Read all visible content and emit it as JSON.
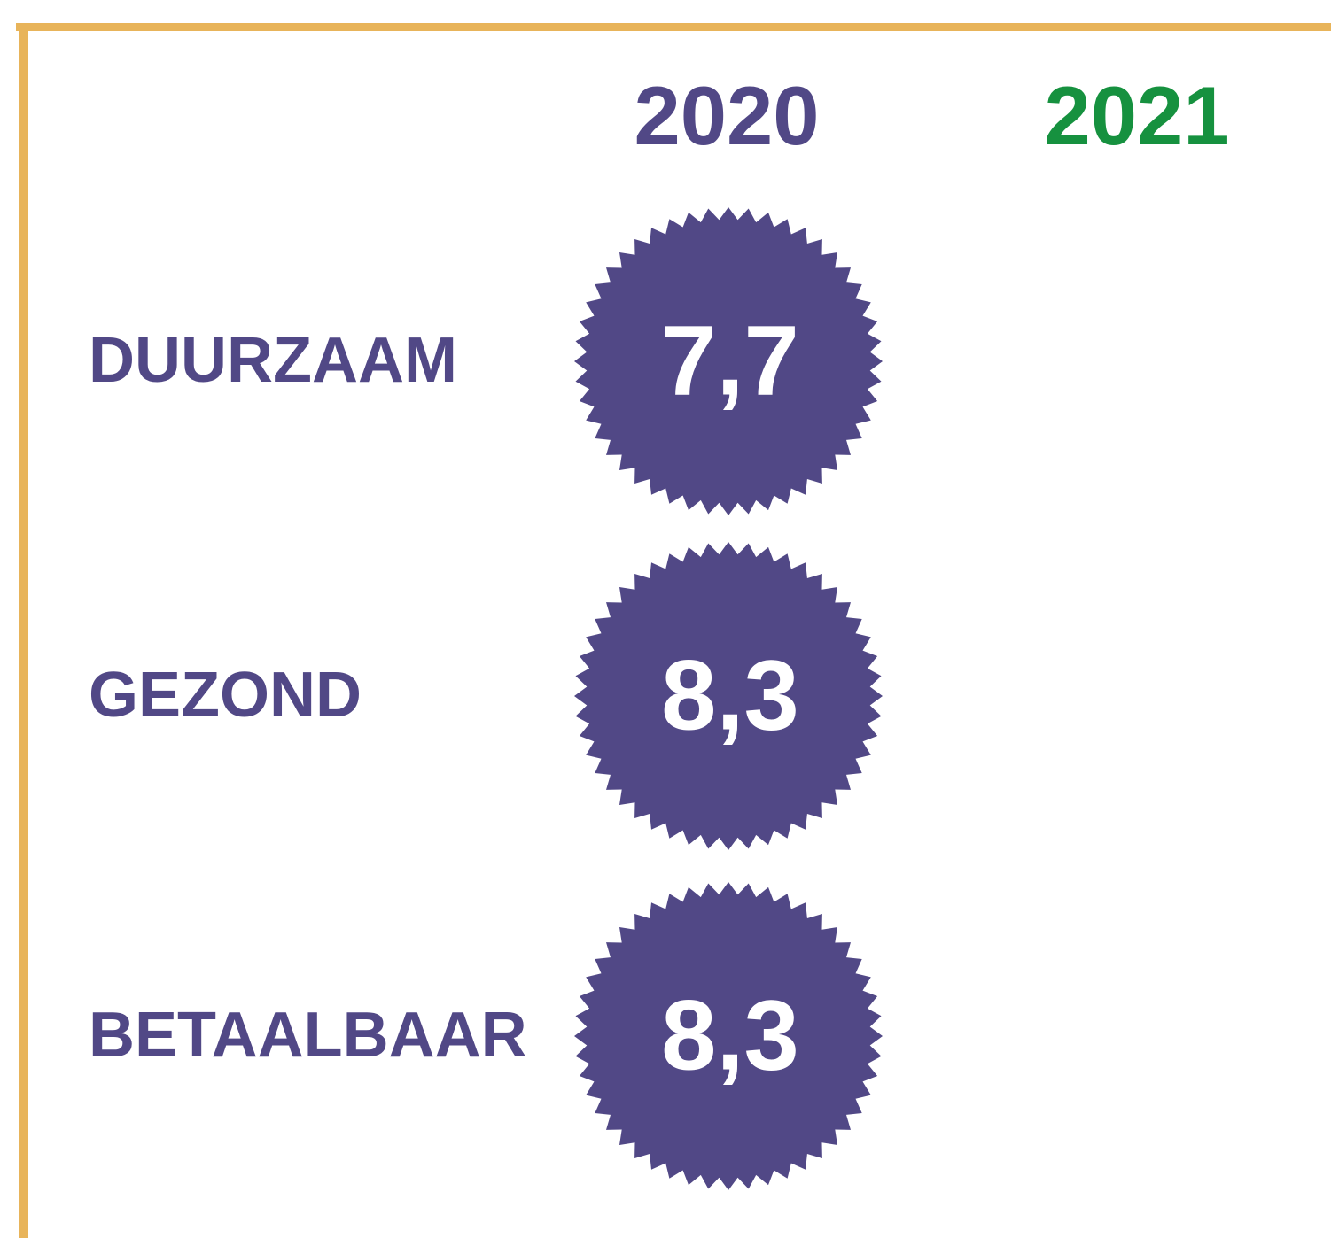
{
  "header": {
    "columns": [
      "2020",
      "2021"
    ]
  },
  "rows": [
    {
      "label": "DUURZAAM",
      "score": "7,7"
    },
    {
      "label": "GEZOND",
      "score": "8,3"
    },
    {
      "label": "BETAALBAAR",
      "score": "8,3"
    }
  ]
}
